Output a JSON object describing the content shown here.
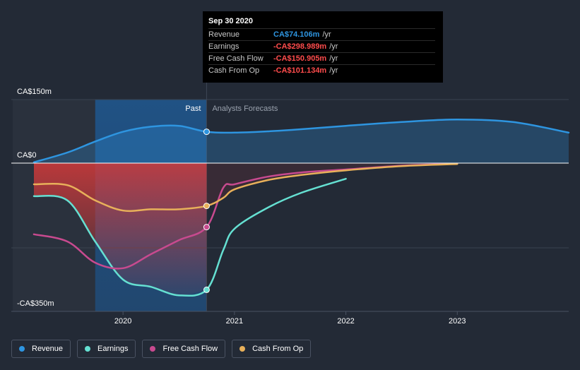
{
  "chart_data": {
    "type": "line",
    "y_unit": "CA$m",
    "ylim": [
      -350,
      150
    ],
    "y_tick_labels": [
      {
        "value": 150,
        "label": "CA$150m"
      },
      {
        "value": 0,
        "label": "CA$0"
      },
      {
        "value": -350,
        "label": "-CA$350m"
      }
    ],
    "x_range": [
      2019.2,
      2024.0
    ],
    "x_tick_labels": [
      {
        "value": 2020.0,
        "label": "2020"
      },
      {
        "value": 2021.0,
        "label": "2021"
      },
      {
        "value": 2022.0,
        "label": "2022"
      },
      {
        "value": 2023.0,
        "label": "2023"
      }
    ],
    "divider_x": 2020.75,
    "past_shade_start": 2019.75,
    "past_label": "Past",
    "forecast_label": "Analysts Forecasts",
    "series": [
      {
        "name": "Revenue",
        "key": "revenue",
        "color": "#2e95e0",
        "fill": true,
        "x": [
          2019.2,
          2019.5,
          2019.75,
          2020.0,
          2020.25,
          2020.5,
          2020.75,
          2021.0,
          2021.3,
          2021.6,
          2022.0,
          2022.5,
          2023.0,
          2023.5,
          2024.0
        ],
        "y": [
          2,
          25,
          51,
          74,
          86,
          88,
          74,
          72,
          75,
          80,
          88,
          97,
          103,
          97,
          72
        ]
      },
      {
        "name": "Earnings",
        "key": "earnings",
        "color": "#65e0d2",
        "fill": false,
        "x": [
          2019.2,
          2019.5,
          2019.75,
          2020.0,
          2020.25,
          2020.5,
          2020.75,
          2020.9,
          2021.0,
          2021.3,
          2021.6,
          2022.0
        ],
        "y": [
          -78,
          -88,
          -185,
          -275,
          -292,
          -312,
          -299,
          -205,
          -155,
          -105,
          -70,
          -37
        ]
      },
      {
        "name": "Free Cash Flow",
        "key": "fcf",
        "color": "#c84a8f",
        "fill": false,
        "x": [
          2019.2,
          2019.5,
          2019.75,
          2020.0,
          2020.25,
          2020.5,
          2020.75,
          2020.9,
          2021.0,
          2021.3,
          2021.6,
          2022.0,
          2022.5,
          2023.0
        ],
        "y": [
          -168,
          -185,
          -235,
          -248,
          -215,
          -182,
          -151,
          -58,
          -50,
          -32,
          -22,
          -15,
          -6,
          -1
        ]
      },
      {
        "name": "Cash From Op",
        "key": "cfo",
        "color": "#e8b05a",
        "fill": false,
        "x": [
          2019.2,
          2019.5,
          2019.75,
          2020.0,
          2020.25,
          2020.5,
          2020.75,
          2020.9,
          2021.0,
          2021.3,
          2021.6,
          2022.0,
          2022.5,
          2023.0
        ],
        "y": [
          -50,
          -52,
          -88,
          -112,
          -109,
          -109,
          -101,
          -82,
          -62,
          -40,
          -28,
          -17,
          -7,
          -2
        ]
      }
    ],
    "highlight_points": [
      {
        "series": "revenue",
        "x": 2020.75,
        "y": 74
      },
      {
        "series": "earnings",
        "x": 2020.75,
        "y": -299
      },
      {
        "series": "fcf",
        "x": 2020.75,
        "y": -151
      },
      {
        "series": "cfo",
        "x": 2020.75,
        "y": -101
      }
    ]
  },
  "tooltip": {
    "date": "Sep 30 2020",
    "rows": [
      {
        "label": "Revenue",
        "value": "CA$74.106m",
        "unit": "/yr",
        "color": "#2e95e0"
      },
      {
        "label": "Earnings",
        "value": "-CA$298.989m",
        "unit": "/yr",
        "color": "#ff4c4c"
      },
      {
        "label": "Free Cash Flow",
        "value": "-CA$150.905m",
        "unit": "/yr",
        "color": "#ff4c4c"
      },
      {
        "label": "Cash From Op",
        "value": "-CA$101.134m",
        "unit": "/yr",
        "color": "#ff4c4c"
      }
    ]
  },
  "legend": [
    {
      "label": "Revenue",
      "color": "#2e95e0"
    },
    {
      "label": "Earnings",
      "color": "#65e0d2"
    },
    {
      "label": "Free Cash Flow",
      "color": "#c84a8f"
    },
    {
      "label": "Cash From Op",
      "color": "#e8b05a"
    }
  ]
}
